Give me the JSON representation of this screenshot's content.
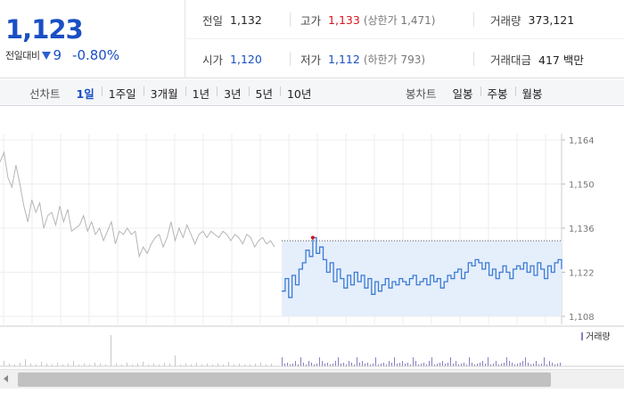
{
  "summary": {
    "price": "1,123",
    "change_label": "전일대비",
    "change_direction_icon": "down-triangle-icon",
    "change_amount": "9",
    "change_percent": "-0.80%",
    "stats": {
      "prev_close": {
        "label": "전일",
        "value": "1,132"
      },
      "high": {
        "label": "고가",
        "value": "1,133",
        "sub": "(상한가 1,471)"
      },
      "volume": {
        "label": "거래량",
        "value": "373,121"
      },
      "open": {
        "label": "시가",
        "value": "1,120"
      },
      "low": {
        "label": "저가",
        "value": "1,112",
        "sub": "(하한가 793)"
      },
      "amount": {
        "label": "거래대금",
        "value": "417 백만"
      }
    }
  },
  "period_tabs": {
    "line_caption": "선차트",
    "line_items": [
      "1일",
      "1주일",
      "3개월",
      "1년",
      "3년",
      "5년",
      "10년"
    ],
    "line_active": 0,
    "candle_caption": "봉차트",
    "candle_items": [
      "일봉",
      "주봉",
      "월봉"
    ]
  },
  "colors": {
    "price_up": "#d9111c",
    "price_down": "#1a4fc4",
    "today_line": "#3b7bd4",
    "today_fill": "#e5eefb",
    "prev_line": "#b5b5b5",
    "volume_today": "#8a7fc0"
  },
  "chart_data": {
    "type": "line",
    "y_ticks": [
      "1,164",
      "1,150",
      "1,136",
      "1,122",
      "1,108"
    ],
    "ylim": [
      1108,
      1164
    ],
    "volume_legend": "거래량",
    "prev_close": 1132,
    "series": [
      {
        "values": [
          1157,
          1160,
          1152,
          1149,
          1156,
          1150,
          1143,
          1138,
          1145,
          1141,
          1144,
          1136,
          1140,
          1141,
          1137,
          1143,
          1138,
          1142,
          1135,
          1136,
          1137,
          1140,
          1135,
          1138,
          1134,
          1136,
          1132,
          1135,
          1138,
          1131,
          1135,
          1134,
          1136,
          1134,
          1135,
          1127,
          1130,
          1128,
          1131,
          1133,
          1134,
          1130,
          1133,
          1138,
          1132,
          1136,
          1133,
          1137,
          1134,
          1131,
          1134,
          1135,
          1133,
          1135,
          1134,
          1133,
          1135,
          1134,
          1132,
          1134,
          1133,
          1131,
          1134,
          1133,
          1130,
          1132,
          1133,
          1131,
          1132,
          1130
        ]
      },
      {
        "values": [
          1116,
          1120,
          1114,
          1121,
          1118,
          1123,
          1125,
          1129,
          1127,
          1133,
          1128,
          1130,
          1126,
          1122,
          1125,
          1119,
          1123,
          1120,
          1117,
          1121,
          1118,
          1122,
          1119,
          1121,
          1117,
          1120,
          1115,
          1119,
          1116,
          1118,
          1120,
          1117,
          1119,
          1118,
          1120,
          1119,
          1118,
          1120,
          1121,
          1118,
          1119,
          1120,
          1118,
          1121,
          1119,
          1120,
          1117,
          1119,
          1121,
          1120,
          1122,
          1123,
          1120,
          1122,
          1125,
          1124,
          1126,
          1125,
          1123,
          1125,
          1121,
          1123,
          1120,
          1122,
          1124,
          1122,
          1120,
          1123,
          1124,
          1123,
          1125,
          1122,
          1124,
          1121,
          1125,
          1123,
          1120,
          1124,
          1122,
          1125,
          1126,
          1123
        ]
      }
    ]
  }
}
